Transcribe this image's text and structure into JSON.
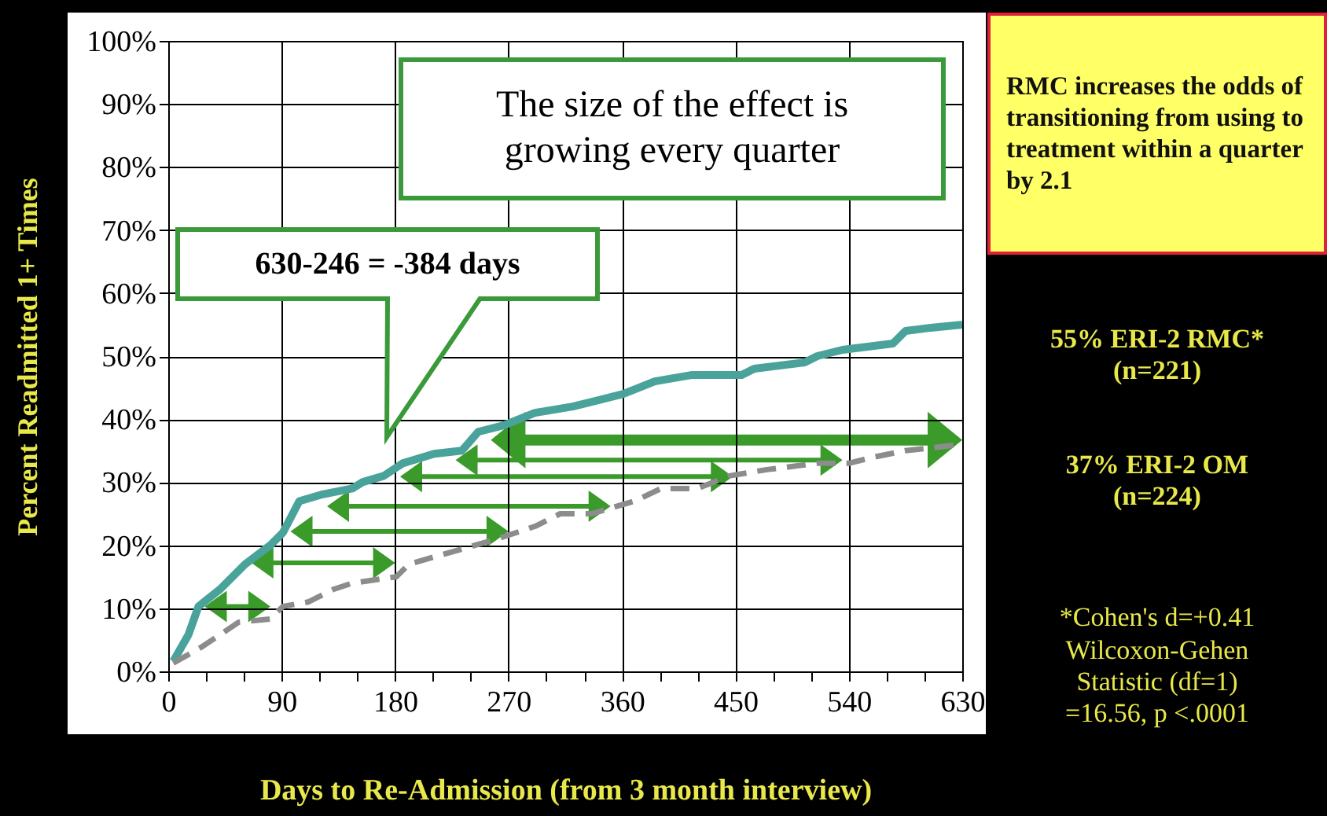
{
  "chart_data": {
    "type": "line",
    "xlabel": "Days to Re-Admission (from 3 month interview)",
    "ylabel": "Percent Readmitted 1+ Times",
    "xlim": [
      0,
      630
    ],
    "ylim": [
      0,
      100
    ],
    "xticks": [
      0,
      {
        "value": 30,
        "label": null
      },
      {
        "value": 60,
        "label": null
      },
      90,
      {
        "value": 120,
        "label": null
      },
      {
        "value": 150,
        "label": null
      },
      180,
      {
        "value": 210,
        "label": null
      },
      {
        "value": 240,
        "label": null
      },
      270,
      {
        "value": 300,
        "label": null
      },
      {
        "value": 330,
        "label": null
      },
      360,
      {
        "value": 390,
        "label": null
      },
      {
        "value": 420,
        "label": null
      },
      450,
      {
        "value": 480,
        "label": null
      },
      {
        "value": 510,
        "label": null
      },
      540,
      {
        "value": 570,
        "label": null
      },
      {
        "value": 600,
        "label": null
      },
      630
    ],
    "yticks": [
      {
        "value": 0,
        "label": "0%"
      },
      {
        "value": 10,
        "label": "10%"
      },
      {
        "value": 20,
        "label": "20%"
      },
      {
        "value": 30,
        "label": "30%"
      },
      {
        "value": 40,
        "label": "40%"
      },
      {
        "value": 50,
        "label": "50%"
      },
      {
        "value": 60,
        "label": "60%"
      },
      {
        "value": 70,
        "label": "70%"
      },
      {
        "value": 80,
        "label": "80%"
      },
      {
        "value": 90,
        "label": "90%"
      },
      {
        "value": 100,
        "label": "100%"
      }
    ],
    "grid": true,
    "series": [
      {
        "color": "#4aa39b",
        "line_style": "solid",
        "x": [
          4,
          16,
          24,
          41,
          61,
          81,
          91,
          104,
          121,
          146,
          154,
          171,
          186,
          211,
          233,
          246,
          266,
          291,
          321,
          361,
          386,
          415,
          455,
          465,
          505,
          515,
          535,
          575,
          585,
          605,
          630
        ],
        "values": [
          1.6,
          5.8,
          10.3,
          13,
          17,
          20,
          22,
          27,
          28,
          29,
          30,
          31,
          33,
          34.5,
          35,
          38,
          39,
          41,
          42,
          44,
          46,
          47,
          47,
          48,
          49,
          50,
          51,
          52,
          54,
          54.5,
          55
        ]
      },
      {
        "color": "#8c8c8c",
        "line_style": "dashed",
        "x": [
          4,
          26,
          56,
          81,
          91,
          111,
          131,
          146,
          181,
          191,
          226,
          261,
          291,
          311,
          336,
          370,
          391,
          420,
          445,
          475,
          515,
          540,
          560,
          585,
          630
        ],
        "values": [
          1.3,
          3.8,
          7.8,
          8.3,
          10.3,
          11,
          13,
          14,
          15,
          17,
          19,
          21,
          23,
          25,
          25,
          27,
          29,
          29,
          31,
          32,
          33,
          33,
          34,
          35,
          36
        ]
      }
    ],
    "annotations": [
      "The size of the effect is growing every quarter",
      "630-246 = -384 days",
      "RMC increases the odds of transitioning from using to treatment within a quarter by 2.1",
      "55% ERI-2 RMC*\n(n=221)",
      "37% ERI-2 OM\n(n=224)",
      "*Cohen's d=+0.41\nWilcoxon-Gehen\nStatistic (df=1)\n=16.56, p <.0001"
    ]
  }
}
